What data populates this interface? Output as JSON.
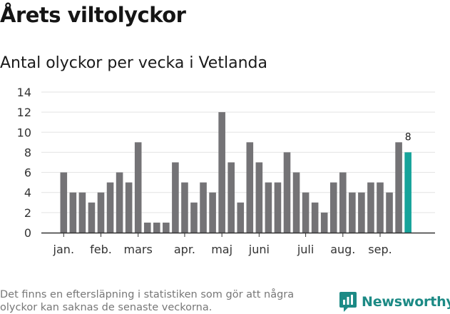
{
  "header": {
    "title": "Årets viltolyckor",
    "subtitle": "Antal olyckor per vecka i Vetlanda"
  },
  "footer": {
    "note": "Det finns en eftersläpning i statistiken som gör att några olyckor kan saknas de senaste veckorna.",
    "brand": "Newsworthy",
    "brand_icon": "newsworthy-logo-icon"
  },
  "colors": {
    "bar": "#747376",
    "highlight": "#16a39a",
    "grid": "#e3e3e3",
    "axis": "#333333",
    "brand": "#1c8a85"
  },
  "chart_data": {
    "type": "bar",
    "values": [
      6,
      4,
      4,
      3,
      4,
      5,
      6,
      5,
      9,
      1,
      1,
      1,
      7,
      5,
      3,
      5,
      4,
      12,
      7,
      3,
      9,
      7,
      5,
      5,
      8,
      6,
      4,
      3,
      2,
      5,
      6,
      4,
      4,
      5,
      5,
      4,
      9,
      8
    ],
    "highlight_index": 37,
    "highlight_label": "8",
    "ylim": [
      0,
      14
    ],
    "yticks": [
      0,
      2,
      4,
      6,
      8,
      10,
      12,
      14
    ],
    "month_labels": [
      {
        "label": "jan.",
        "bar_index": 0
      },
      {
        "label": "feb.",
        "bar_index": 4
      },
      {
        "label": "mars",
        "bar_index": 8
      },
      {
        "label": "apr.",
        "bar_index": 13
      },
      {
        "label": "maj",
        "bar_index": 17
      },
      {
        "label": "juni",
        "bar_index": 21
      },
      {
        "label": "juli",
        "bar_index": 26
      },
      {
        "label": "aug.",
        "bar_index": 30
      },
      {
        "label": "sep.",
        "bar_index": 34
      }
    ],
    "grid": true,
    "xlabel": "",
    "ylabel": ""
  }
}
